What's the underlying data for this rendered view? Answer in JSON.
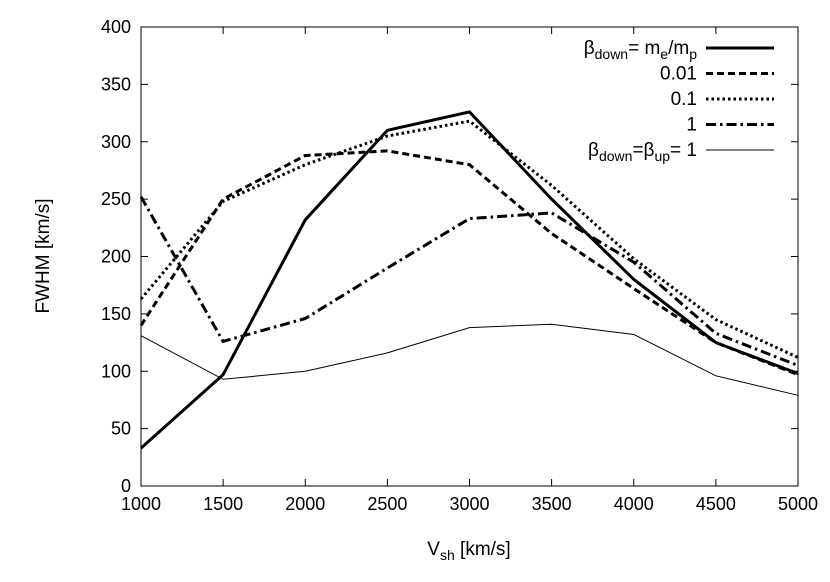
{
  "chart_data": {
    "type": "line",
    "xlabel": "V",
    "xlabel_sub": "sh",
    "xlabel_unit": " [km/s]",
    "ylabel": "FWHM [km/s]",
    "xlim": [
      1000,
      5000
    ],
    "ylim": [
      0,
      400
    ],
    "xticks": [
      1000,
      1500,
      2000,
      2500,
      3000,
      3500,
      4000,
      4500,
      5000
    ],
    "yticks": [
      0,
      50,
      100,
      150,
      200,
      250,
      300,
      350,
      400
    ],
    "grid": false,
    "legend_position": "top-right",
    "x": [
      1000,
      1500,
      2000,
      2500,
      3000,
      3500,
      4000,
      4500,
      5000
    ],
    "series": [
      {
        "name": "βdown= me/mp",
        "legend_parts": [
          [
            "β",
            ""
          ],
          [
            "down",
            "sub"
          ],
          [
            "= m",
            ""
          ],
          [
            "e",
            "sub"
          ],
          [
            "/m",
            ""
          ],
          [
            "p",
            "sub"
          ]
        ],
        "style": "solid-thick",
        "values": [
          33,
          97,
          232,
          310,
          326,
          250,
          180,
          125,
          98
        ]
      },
      {
        "name": "0.01",
        "legend_parts": [
          [
            "0.01",
            ""
          ]
        ],
        "style": "dashed",
        "values": [
          140,
          250,
          288,
          292,
          280,
          220,
          172,
          125,
          97
        ]
      },
      {
        "name": "0.1",
        "legend_parts": [
          [
            "0.1",
            ""
          ]
        ],
        "style": "dotted",
        "values": [
          163,
          248,
          280,
          305,
          318,
          262,
          198,
          145,
          112
        ]
      },
      {
        "name": "1",
        "legend_parts": [
          [
            "1",
            ""
          ]
        ],
        "style": "dash-dot",
        "values": [
          252,
          126,
          146,
          190,
          233,
          238,
          195,
          133,
          105
        ]
      },
      {
        "name": "βdown=βup= 1",
        "legend_parts": [
          [
            "β",
            ""
          ],
          [
            "down",
            "sub"
          ],
          [
            "=β",
            ""
          ],
          [
            "up",
            "sub"
          ],
          [
            "= 1",
            ""
          ]
        ],
        "style": "solid-thin",
        "values": [
          131,
          93,
          100,
          116,
          138,
          141,
          132,
          96,
          79
        ]
      }
    ]
  }
}
